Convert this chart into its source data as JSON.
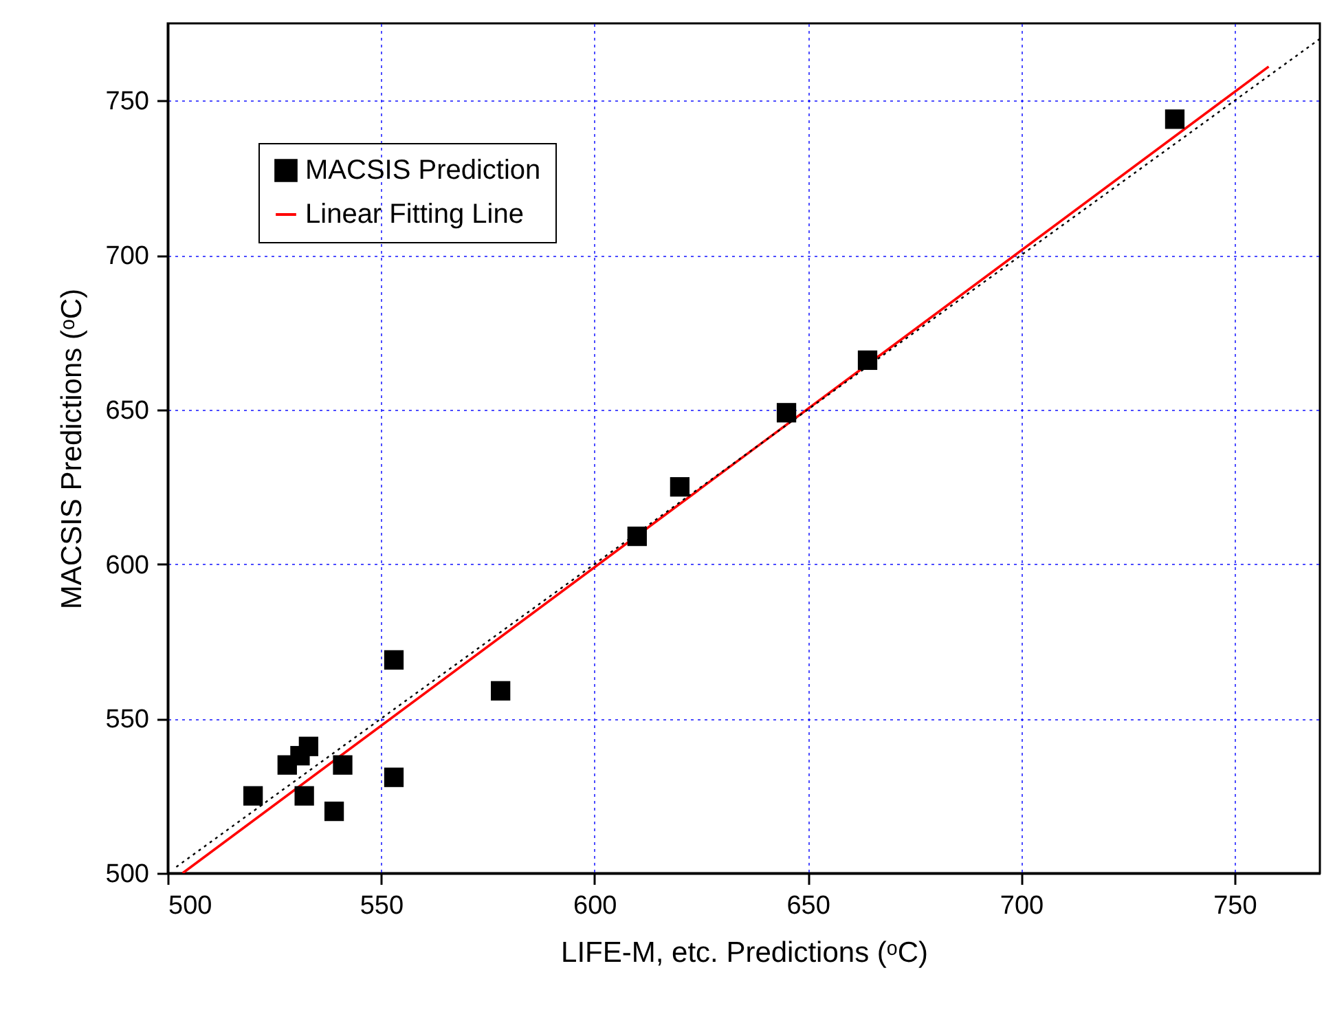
{
  "chart_data": {
    "type": "scatter",
    "xlabel": "LIFE-M, etc. Predictions (ᵒC)",
    "ylabel": "MACSIS Predictions (ᵒC)",
    "xlim": [
      500,
      770
    ],
    "xticks": [
      500,
      550,
      600,
      650,
      700,
      750
    ],
    "ylim": [
      500,
      775
    ],
    "yticks": [
      500,
      550,
      600,
      650,
      700,
      750
    ],
    "grid": true,
    "legend": "top left",
    "series": [
      {
        "name": "MACSIS Prediction",
        "marker": "square",
        "color": "#000000",
        "x": [
          520,
          528,
          531,
          533,
          532,
          539,
          541,
          553,
          553,
          578,
          610,
          620,
          645,
          664,
          736
        ],
        "values": [
          525,
          535,
          538,
          541,
          525,
          520,
          535,
          531,
          569,
          559,
          609,
          625,
          649,
          666,
          744
        ]
      },
      {
        "name": "Linear Fitting Line",
        "type": "line",
        "color": "#ff0000",
        "x": [
          503.5,
          758
        ],
        "values": [
          500,
          761
        ]
      },
      {
        "type": "line",
        "color": "#000000",
        "line_style": "dotted",
        "x": [
          502,
          770
        ],
        "values": [
          502,
          770
        ]
      }
    ]
  }
}
